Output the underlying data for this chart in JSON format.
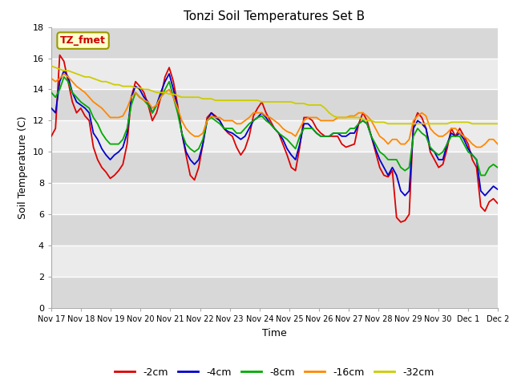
{
  "title": "Tonzi Soil Temperatures Set B",
  "xlabel": "Time",
  "ylabel": "Soil Temperature (C)",
  "ylim": [
    0,
    18
  ],
  "yticks": [
    0,
    2,
    4,
    6,
    8,
    10,
    12,
    14,
    16,
    18
  ],
  "annotation_label": "TZ_fmet",
  "annotation_color": "#cc0000",
  "annotation_bg": "#ffffcc",
  "annotation_border": "#999900",
  "series_colors": [
    "#dd0000",
    "#0000cc",
    "#00aa00",
    "#ff8800",
    "#cccc00"
  ],
  "series_labels": [
    "-2cm",
    "-4cm",
    "-8cm",
    "-16cm",
    "-32cm"
  ],
  "bg_color": "#ffffff",
  "plot_bg_color": "#e0e0e0",
  "band_color_light": "#ebebeb",
  "band_color_dark": "#d8d8d8",
  "grid_color": "#ffffff",
  "x_tick_labels": [
    "Nov 17",
    "Nov 18",
    "Nov 19",
    "Nov 20",
    "Nov 21",
    "Nov 22",
    "Nov 23",
    "Nov 24",
    "Nov 25",
    "Nov 26",
    "Nov 27",
    "Nov 28",
    "Nov 29",
    "Nov 30",
    "Dec 1",
    "Dec 2"
  ],
  "x_tick_positions": [
    0,
    1,
    2,
    3,
    4,
    5,
    6,
    7,
    8,
    9,
    10,
    11,
    12,
    13,
    14,
    15
  ],
  "data_2cm": [
    11.0,
    11.5,
    16.2,
    15.8,
    14.5,
    13.2,
    12.5,
    12.8,
    12.3,
    12.0,
    10.3,
    9.5,
    9.0,
    8.7,
    8.3,
    8.5,
    8.8,
    9.2,
    10.5,
    13.5,
    14.5,
    14.2,
    13.8,
    13.0,
    12.0,
    12.5,
    13.5,
    14.8,
    15.4,
    14.5,
    13.0,
    11.2,
    9.8,
    8.5,
    8.2,
    9.0,
    10.5,
    12.2,
    12.5,
    12.3,
    12.0,
    11.5,
    11.2,
    11.0,
    10.3,
    9.8,
    10.2,
    11.0,
    12.3,
    12.8,
    13.2,
    12.5,
    12.0,
    11.5,
    11.2,
    10.5,
    9.8,
    9.0,
    8.8,
    10.3,
    12.2,
    12.2,
    12.0,
    11.5,
    11.2,
    11.0,
    11.0,
    11.0,
    11.0,
    10.5,
    10.3,
    10.4,
    10.5,
    11.8,
    12.5,
    12.0,
    11.0,
    10.0,
    9.0,
    8.5,
    8.4,
    8.8,
    5.8,
    5.5,
    5.6,
    6.0,
    11.8,
    12.5,
    12.2,
    11.5,
    10.0,
    9.5,
    9.0,
    9.2,
    10.2,
    11.5,
    11.0,
    11.5,
    11.0,
    10.5,
    9.5,
    9.0,
    6.5,
    6.2,
    6.8,
    7.0,
    6.7
  ],
  "data_4cm": [
    12.8,
    12.5,
    14.5,
    15.2,
    14.8,
    13.8,
    13.2,
    13.0,
    12.8,
    12.5,
    11.2,
    10.8,
    10.2,
    9.8,
    9.5,
    9.8,
    10.0,
    10.3,
    11.2,
    13.5,
    14.2,
    14.0,
    13.5,
    13.2,
    12.5,
    13.0,
    13.8,
    14.5,
    15.0,
    14.0,
    12.8,
    11.2,
    10.0,
    9.5,
    9.2,
    9.5,
    10.5,
    12.0,
    12.5,
    12.2,
    12.0,
    11.5,
    11.3,
    11.2,
    11.0,
    10.8,
    11.0,
    11.5,
    12.0,
    12.2,
    12.5,
    12.2,
    11.8,
    11.5,
    11.2,
    10.8,
    10.2,
    9.8,
    9.5,
    10.5,
    11.8,
    11.8,
    11.5,
    11.2,
    11.0,
    11.0,
    11.0,
    11.2,
    11.2,
    11.0,
    11.0,
    11.2,
    11.2,
    11.8,
    12.0,
    11.8,
    11.0,
    10.2,
    9.5,
    9.0,
    8.5,
    9.0,
    8.5,
    7.5,
    7.2,
    7.5,
    11.5,
    12.0,
    11.8,
    11.5,
    10.2,
    10.0,
    9.5,
    9.5,
    10.5,
    11.2,
    11.0,
    11.2,
    10.8,
    10.2,
    9.8,
    9.5,
    7.5,
    7.2,
    7.5,
    7.8,
    7.6
  ],
  "data_8cm": [
    13.8,
    13.5,
    14.0,
    14.8,
    14.5,
    13.8,
    13.5,
    13.2,
    13.0,
    12.8,
    12.2,
    11.8,
    11.2,
    10.8,
    10.5,
    10.5,
    10.5,
    10.8,
    11.5,
    13.0,
    13.8,
    13.5,
    13.3,
    13.0,
    12.5,
    13.0,
    13.5,
    14.0,
    14.5,
    13.5,
    12.5,
    11.2,
    10.5,
    10.2,
    10.0,
    10.2,
    10.8,
    12.0,
    12.2,
    12.0,
    11.8,
    11.5,
    11.5,
    11.5,
    11.2,
    11.2,
    11.5,
    11.8,
    12.0,
    12.2,
    12.3,
    12.0,
    11.8,
    11.5,
    11.2,
    11.0,
    10.8,
    10.5,
    10.2,
    11.0,
    11.5,
    11.5,
    11.5,
    11.2,
    11.0,
    11.0,
    11.0,
    11.2,
    11.2,
    11.2,
    11.2,
    11.5,
    11.5,
    11.8,
    12.0,
    11.8,
    11.0,
    10.5,
    10.0,
    9.8,
    9.5,
    9.5,
    9.5,
    9.0,
    8.8,
    9.0,
    11.0,
    11.5,
    11.2,
    11.0,
    10.3,
    10.0,
    9.8,
    10.0,
    10.5,
    11.0,
    11.0,
    11.0,
    10.5,
    10.0,
    9.8,
    9.5,
    8.5,
    8.5,
    9.0,
    9.2,
    9.0
  ],
  "data_16cm": [
    14.7,
    14.5,
    14.7,
    15.0,
    14.8,
    14.5,
    14.2,
    14.0,
    13.8,
    13.5,
    13.2,
    13.0,
    12.8,
    12.5,
    12.2,
    12.2,
    12.2,
    12.3,
    12.8,
    13.5,
    13.8,
    13.5,
    13.3,
    13.2,
    12.8,
    13.0,
    13.5,
    13.8,
    14.0,
    13.5,
    12.8,
    12.0,
    11.5,
    11.2,
    11.0,
    11.0,
    11.2,
    12.0,
    12.3,
    12.2,
    12.2,
    12.0,
    12.0,
    12.0,
    11.8,
    11.8,
    12.0,
    12.2,
    12.5,
    12.5,
    12.5,
    12.3,
    12.2,
    12.0,
    11.8,
    11.5,
    11.3,
    11.2,
    11.0,
    11.5,
    12.0,
    12.2,
    12.2,
    12.2,
    12.0,
    12.0,
    12.0,
    12.0,
    12.2,
    12.2,
    12.2,
    12.3,
    12.3,
    12.5,
    12.5,
    12.3,
    12.0,
    11.5,
    11.0,
    10.8,
    10.5,
    10.8,
    10.8,
    10.5,
    10.5,
    10.8,
    12.0,
    12.3,
    12.5,
    12.3,
    11.5,
    11.2,
    11.0,
    11.0,
    11.2,
    11.5,
    11.5,
    11.2,
    11.0,
    10.8,
    10.5,
    10.3,
    10.3,
    10.5,
    10.8,
    10.8,
    10.5
  ],
  "data_32cm": [
    15.5,
    15.4,
    15.3,
    15.2,
    15.2,
    15.1,
    15.0,
    14.9,
    14.8,
    14.8,
    14.7,
    14.6,
    14.5,
    14.5,
    14.4,
    14.3,
    14.3,
    14.2,
    14.2,
    14.2,
    14.1,
    14.1,
    14.0,
    14.0,
    13.9,
    13.8,
    13.8,
    13.8,
    13.7,
    13.7,
    13.6,
    13.5,
    13.5,
    13.5,
    13.5,
    13.5,
    13.4,
    13.4,
    13.4,
    13.3,
    13.3,
    13.3,
    13.3,
    13.3,
    13.3,
    13.3,
    13.3,
    13.3,
    13.3,
    13.3,
    13.2,
    13.2,
    13.2,
    13.2,
    13.2,
    13.2,
    13.2,
    13.2,
    13.1,
    13.1,
    13.1,
    13.0,
    13.0,
    13.0,
    13.0,
    12.8,
    12.5,
    12.3,
    12.2,
    12.2,
    12.2,
    12.2,
    12.2,
    12.2,
    12.1,
    12.0,
    12.0,
    11.9,
    11.9,
    11.9,
    11.8,
    11.8,
    11.8,
    11.8,
    11.8,
    11.8,
    11.8,
    11.8,
    11.8,
    11.8,
    11.8,
    11.8,
    11.8,
    11.8,
    11.8,
    11.9,
    11.9,
    11.9,
    11.9,
    11.9,
    11.8,
    11.8,
    11.8,
    11.8,
    11.8,
    11.8,
    11.8
  ]
}
